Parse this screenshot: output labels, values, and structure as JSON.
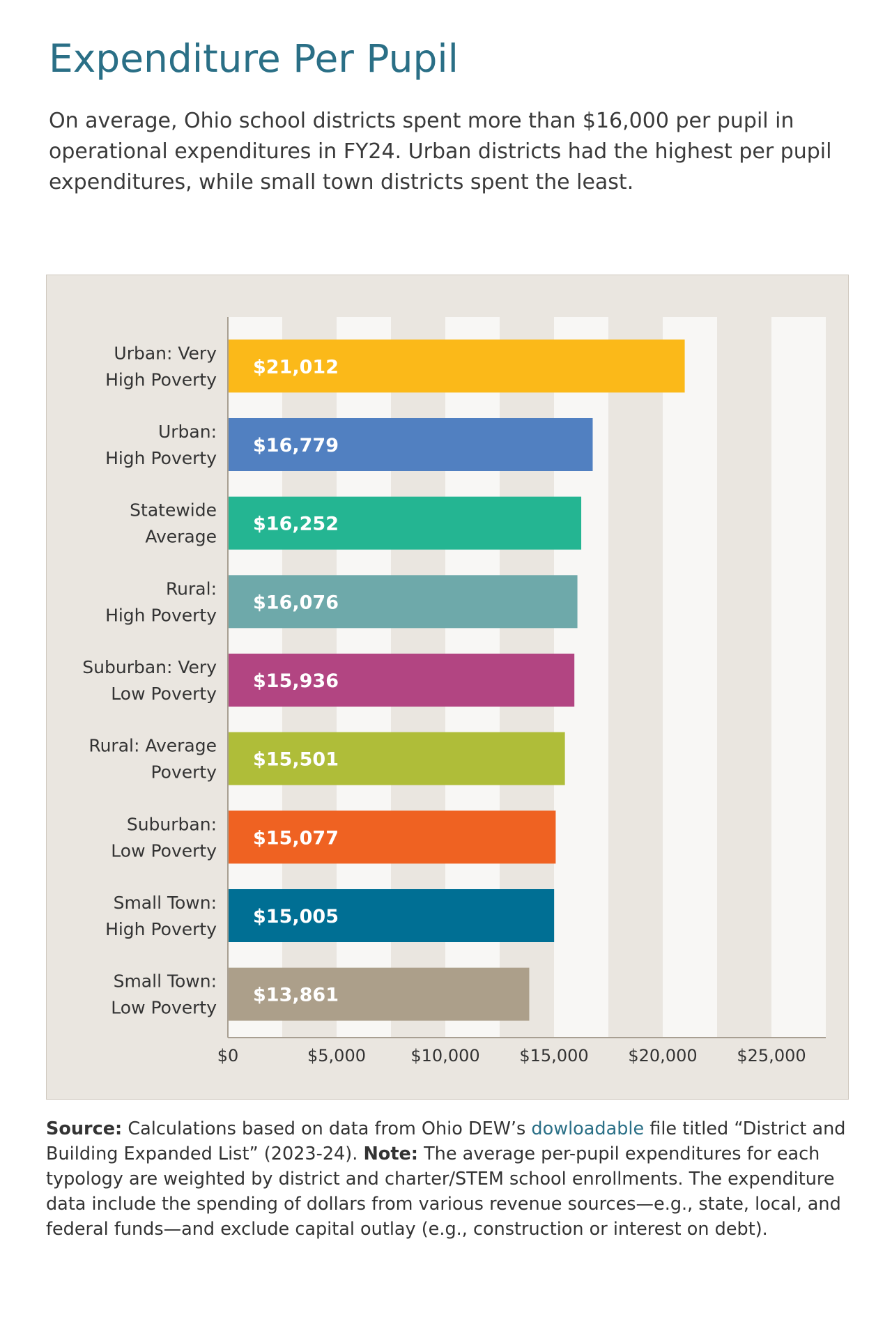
{
  "title": "Expenditure Per Pupil",
  "intro": "On average, Ohio school districts spent more than $16,000 per pupil in operational expenditures in FY24. Urban districts had the highest per pupil expenditures, while small town districts spent the least.",
  "chart_data": {
    "type": "bar",
    "orientation": "horizontal",
    "title": "",
    "xlabel": "",
    "ylabel": "",
    "xlim": [
      0,
      27500
    ],
    "x_ticks": [
      0,
      5000,
      10000,
      15000,
      20000,
      25000
    ],
    "x_tick_labels": [
      "$0",
      "$5,000",
      "$10,000",
      "$15,000",
      "$20,000",
      "$25,000"
    ],
    "background_bands": true,
    "categories": [
      [
        "Urban: Very",
        "High Poverty"
      ],
      [
        "Urban:",
        "High Poverty"
      ],
      [
        "Statewide",
        "Average"
      ],
      [
        "Rural:",
        "High Poverty"
      ],
      [
        "Suburban: Very",
        "Low Poverty"
      ],
      [
        "Rural: Average",
        "Poverty"
      ],
      [
        "Suburban:",
        "Low Poverty"
      ],
      [
        "Small Town:",
        "High Poverty"
      ],
      [
        "Small Town:",
        "Low Poverty"
      ]
    ],
    "values": [
      21012,
      16779,
      16252,
      16076,
      15936,
      15501,
      15077,
      15005,
      13861
    ],
    "value_labels": [
      "$21,012",
      "$16,779",
      "$16,252",
      "$16,076",
      "$15,936",
      "$15,501",
      "$15,077",
      "$15,005",
      "$13,861"
    ],
    "colors": [
      "#fbb919",
      "#5180c1",
      "#24b592",
      "#6ea9aa",
      "#b24582",
      "#afbd39",
      "#ef6222",
      "#006f94",
      "#ac9f8a"
    ]
  },
  "footnote": {
    "source_label": "Source:",
    "source_text_1": " Calculations based on data from Ohio DEW’s ",
    "source_link": "dowloadable",
    "source_text_2": " file titled “District and Building Expanded List” (2023-24). ",
    "note_label": "Note:",
    "note_text": " The average per-pupil expenditures for each typology are weighted by district and charter/STEM school enrollments. The expenditure data include the spending of dollars from various revenue sources—e.g., state, local, and federal funds—and exclude capital outlay (e.g., construction or interest on debt)."
  },
  "colors": {
    "title": "#2a6f86",
    "panel_bg": "#eae6e0",
    "band_light": "#f8f7f5",
    "axis": "#a89f92"
  }
}
